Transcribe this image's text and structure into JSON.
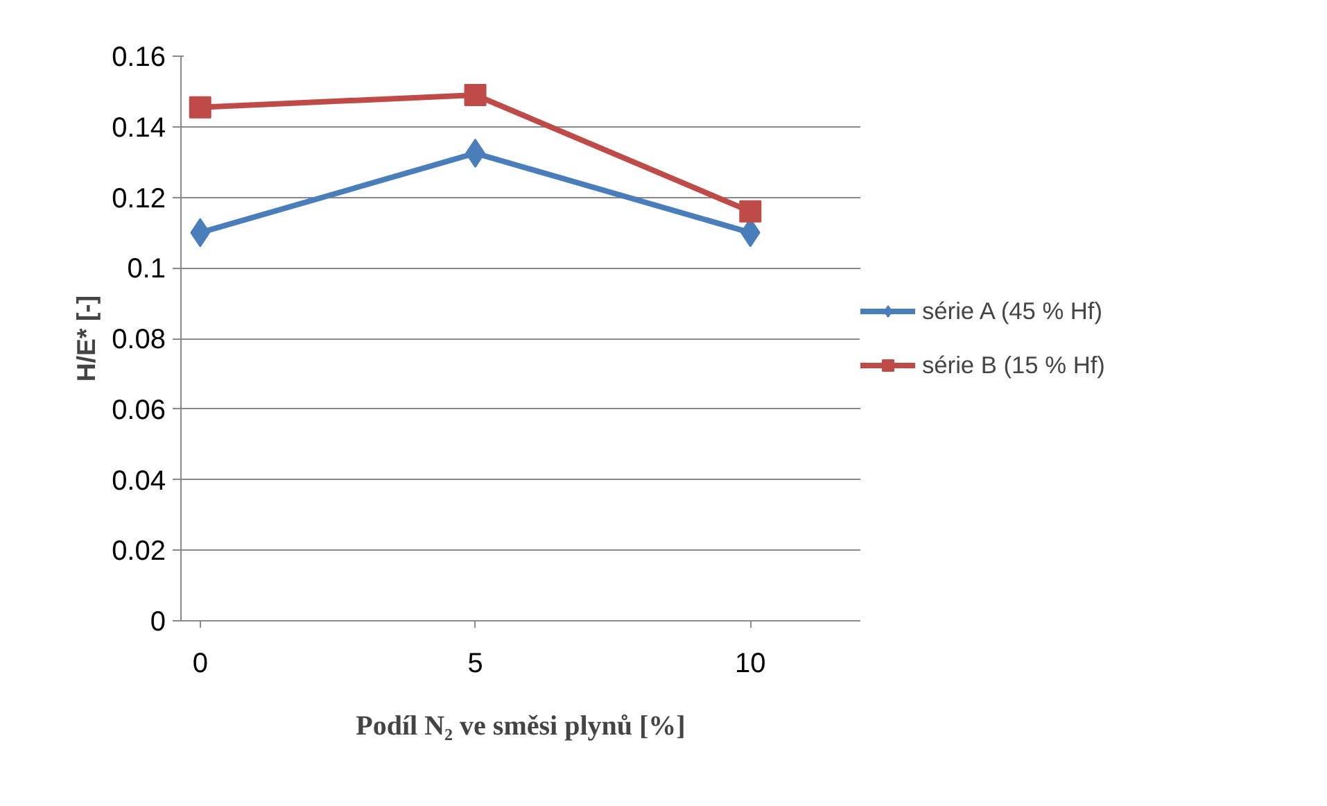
{
  "chart_data": {
    "type": "line",
    "xlabel": "Podíl N₂ ve směsi plynů [%]",
    "ylabel": "H/E* [-]",
    "x": [
      0,
      5,
      10
    ],
    "series": [
      {
        "name": "série A (45 % Hf)",
        "color": "#4a7ebb",
        "marker": "diamond",
        "values": [
          0.11,
          0.1325,
          0.11
        ]
      },
      {
        "name": "série B (15 % Hf)",
        "color": "#be4b48",
        "marker": "square",
        "values": [
          0.1455,
          0.149,
          0.116
        ]
      }
    ],
    "xlim": [
      -0.35,
      12
    ],
    "xticks": [
      0,
      5,
      10
    ],
    "ylim": [
      0,
      0.16
    ],
    "yticks": [
      0,
      0.02,
      0.04,
      0.06,
      0.08,
      0.1,
      0.12,
      0.14,
      0.16
    ],
    "grid": "y",
    "legend": "right",
    "line_style": "solid"
  }
}
